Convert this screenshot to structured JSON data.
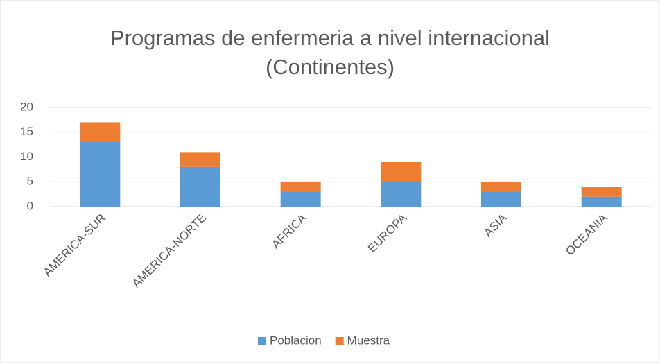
{
  "chart_data": {
    "type": "stacked_bar",
    "title": "Programas de enfermeria a nivel internacional (Continentes)",
    "categories": [
      "AMERICA-SUR",
      "AMERICA-NORTE",
      "AFRICA",
      "EUROPA",
      "ASIA",
      "OCEANIA"
    ],
    "series": [
      {
        "name": "Poblacion",
        "color": "#5b9bd5",
        "values": [
          13,
          8,
          3,
          5,
          3,
          2
        ]
      },
      {
        "name": "Muestra",
        "color": "#ed7d31",
        "values": [
          4,
          3,
          2,
          4,
          2,
          2
        ]
      }
    ],
    "ylim": [
      0,
      20
    ],
    "yticks": [
      0,
      5,
      10,
      15,
      20
    ],
    "grid": true,
    "legend": "bottom"
  }
}
